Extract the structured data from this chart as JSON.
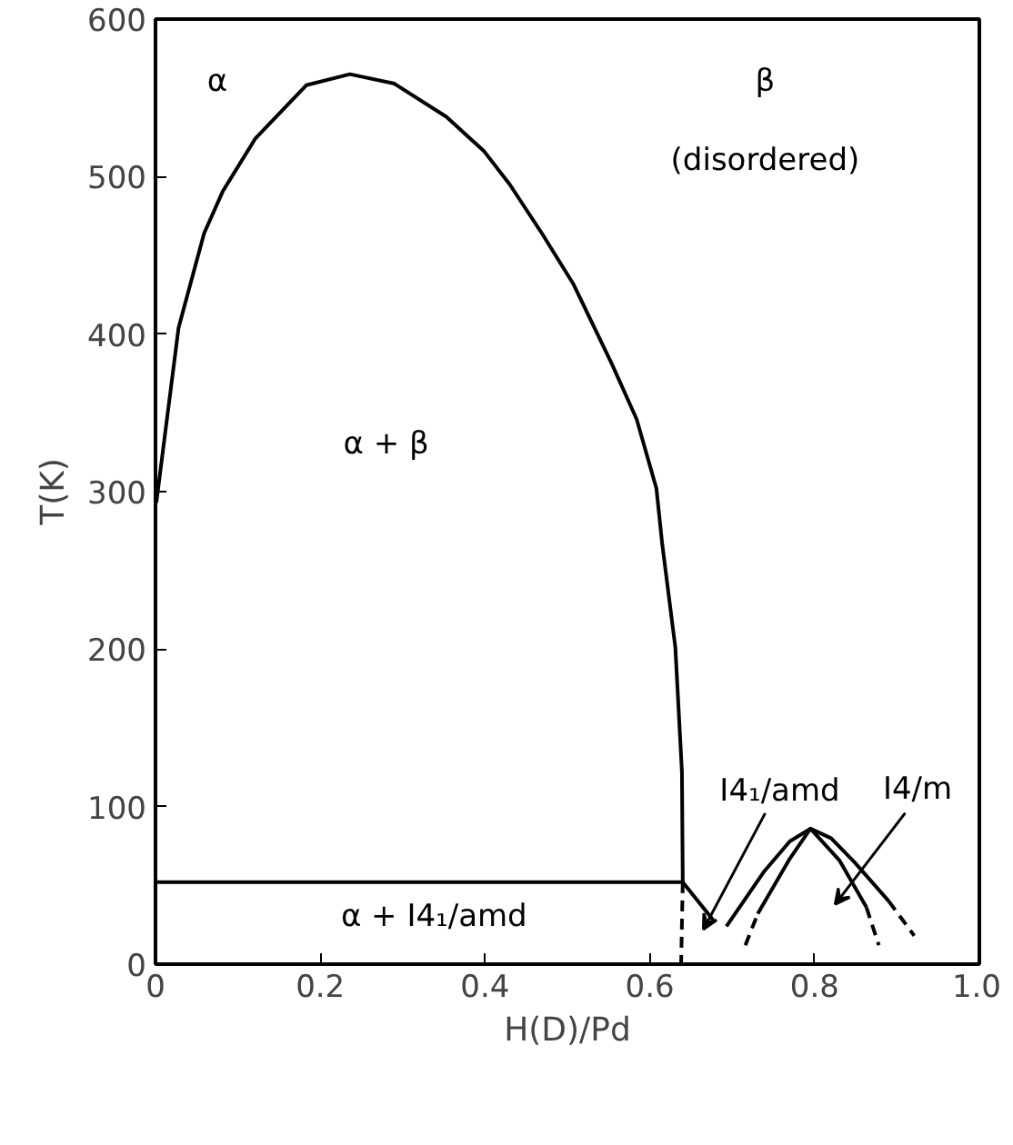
{
  "chart_data": {
    "type": "line",
    "xlabel": "H(D)/Pd",
    "ylabel": "T(K)",
    "xlim": [
      0,
      1.0
    ],
    "ylim": [
      0,
      600
    ],
    "xticks": [
      {
        "value": 0,
        "label": "0"
      },
      0.2,
      0.4,
      0.6,
      0.8,
      {
        "value": 1.0,
        "label": "1.0"
      }
    ],
    "yticks": [
      0,
      100,
      200,
      300,
      400,
      500,
      600
    ],
    "grid": false,
    "series": [
      {
        "color": "#000000",
        "line_style": "solid",
        "x": [
          0.001,
          0.028,
          0.059,
          0.082,
          0.121,
          0.183,
          0.236,
          0.29,
          0.353,
          0.399,
          0.43,
          0.469,
          0.507,
          0.554,
          0.584,
          0.608,
          0.615,
          0.631,
          0.639,
          0.64
        ],
        "values": [
          293,
          404,
          464,
          491,
          524,
          558,
          565,
          559,
          538,
          516,
          495,
          464,
          432,
          381,
          346,
          302,
          267,
          201,
          122,
          52
        ]
      },
      {
        "color": "#000000",
        "line_style": "dashed",
        "x": [
          0.64,
          0.638
        ],
        "values": [
          52,
          0
        ]
      },
      {
        "color": "#000000",
        "line_style": "solid",
        "x": [
          0,
          0.64
        ],
        "values": [
          52,
          52
        ]
      },
      {
        "color": "#000000",
        "line_style": "solid",
        "x": [
          0.64,
          0.677
        ],
        "values": [
          52,
          28
        ]
      },
      {
        "color": "#000000",
        "line_style": "solid",
        "x": [
          0.693,
          0.739,
          0.77,
          0.795,
          0.83,
          0.863
        ],
        "values": [
          24,
          59,
          78,
          86,
          66,
          36
        ]
      },
      {
        "color": "#000000",
        "line_style": "dashed",
        "x": [
          0.863,
          0.878
        ],
        "values": [
          36,
          12
        ]
      },
      {
        "color": "#000000",
        "line_style": "dashed",
        "x": [
          0.716,
          0.731
        ],
        "values": [
          12,
          32
        ]
      },
      {
        "color": "#000000",
        "line_style": "solid",
        "x": [
          0.731,
          0.77,
          0.795,
          0.82,
          0.848,
          0.89
        ],
        "values": [
          32,
          67,
          86,
          80,
          65,
          40
        ]
      },
      {
        "color": "#000000",
        "line_style": "dashed",
        "x": [
          0.89,
          0.921
        ],
        "values": [
          40,
          18
        ]
      }
    ],
    "annotations": [
      "α",
      "β",
      "(disordered)",
      "α + β",
      "α  +  I4₁/amd",
      {
        "text": "I4₁/amd",
        "x": 0.665,
        "y": 22
      },
      "I4/m"
    ]
  }
}
